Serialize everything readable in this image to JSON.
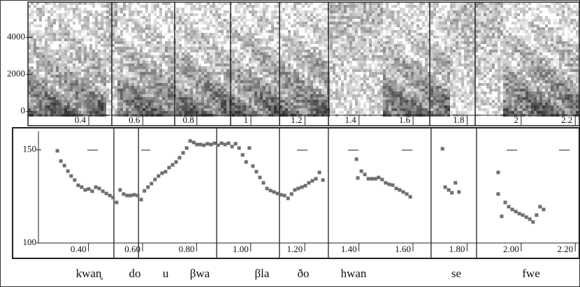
{
  "chart_data": [
    {
      "type": "spectrogram",
      "xlim": [
        0.175,
        2.215
      ],
      "ylim": [
        -200,
        5900
      ],
      "xticks": [
        0.4,
        0.6,
        0.8,
        1,
        1.2,
        1.4,
        1.6,
        1.8,
        2,
        2.2
      ],
      "yticks": [
        0,
        2000,
        4000
      ]
    },
    {
      "type": "scatter",
      "color": "#6e6e6e",
      "xlim": [
        0.215,
        2.215
      ],
      "ylim": [
        100,
        160
      ],
      "xticks": [
        {
          "value": 0.4,
          "label": "0.40"
        },
        {
          "value": 0.6,
          "label": "0.60"
        },
        {
          "value": 0.8,
          "label": "0.80"
        },
        {
          "value": 1.0,
          "label": "1.00"
        },
        {
          "value": 1.2,
          "label": "1.20"
        },
        {
          "value": 1.4,
          "label": "1.40"
        },
        {
          "value": 1.6,
          "label": "1.60"
        },
        {
          "value": 1.8,
          "label": "1.80"
        },
        {
          "value": 2.0,
          "label": "2.00"
        },
        {
          "value": 2.2,
          "label": "2.20"
        }
      ],
      "yticks": [
        100,
        150
      ],
      "boundaries": [
        0.494,
        0.585,
        0.874,
        1.106,
        1.287,
        1.667,
        1.835
      ],
      "x": [
        0.285,
        0.298,
        0.311,
        0.324,
        0.336,
        0.349,
        0.362,
        0.375,
        0.388,
        0.401,
        0.414,
        0.427,
        0.44,
        0.453,
        0.466,
        0.479,
        0.491,
        0.504,
        0.517,
        0.53,
        0.543,
        0.556,
        0.569,
        0.582,
        0.595,
        0.607,
        0.62,
        0.633,
        0.646,
        0.659,
        0.672,
        0.685,
        0.698,
        0.711,
        0.724,
        0.737,
        0.75,
        0.763,
        0.776,
        0.789,
        0.801,
        0.814,
        0.827,
        0.84,
        0.853,
        0.866,
        0.879,
        0.892,
        0.905,
        0.918,
        0.931,
        0.944,
        0.957,
        0.97,
        0.983,
        0.995,
        1.008,
        1.021,
        1.034,
        1.047,
        1.06,
        1.073,
        1.086,
        1.099,
        1.112,
        1.125,
        1.138,
        1.151,
        1.163,
        1.176,
        1.189,
        1.202,
        1.215,
        1.228,
        1.241,
        1.254,
        1.267,
        1.391,
        1.396,
        1.409,
        1.422,
        1.435,
        1.448,
        1.461,
        1.473,
        1.486,
        1.499,
        1.512,
        1.525,
        1.538,
        1.551,
        1.564,
        1.577,
        1.59,
        1.709,
        1.719,
        1.732,
        1.744,
        1.757,
        1.77,
        1.915,
        1.915,
        1.928,
        1.941,
        1.954,
        1.967,
        1.98,
        1.993,
        2.006,
        2.019,
        2.032,
        2.044,
        2.057,
        2.07,
        2.083
      ],
      "values": [
        149.5,
        144,
        141.6,
        138.6,
        136,
        133.8,
        131,
        130,
        128.5,
        129,
        127.8,
        130,
        129.3,
        127.8,
        126.6,
        125.5,
        124.4,
        121.8,
        128.5,
        126.3,
        125.5,
        125.5,
        125.9,
        125.5,
        123.3,
        128,
        130,
        131.9,
        134.1,
        136,
        137.5,
        138.3,
        140.5,
        142,
        143.5,
        145.8,
        148.4,
        151,
        154.8,
        154,
        152.9,
        152.9,
        152.5,
        153.3,
        152.9,
        153.6,
        152.5,
        153.6,
        152.9,
        153.6,
        151.8,
        153.3,
        151,
        147.3,
        143.5,
        151,
        141.3,
        138.3,
        135.2,
        132.3,
        129.3,
        128.2,
        127.4,
        126.6,
        125.9,
        125.5,
        124,
        126.3,
        128.5,
        129.3,
        130,
        130.8,
        132.3,
        133.4,
        134.5,
        137.9,
        133.8,
        145,
        134.9,
        138.6,
        136.8,
        134.5,
        134.5,
        134.5,
        135.2,
        134.1,
        132.3,
        131.5,
        131.1,
        129.3,
        128.5,
        127.4,
        126.3,
        124.8,
        150.6,
        130,
        128.5,
        127,
        132.3,
        127.4,
        137.9,
        126.3,
        114.3,
        121.8,
        119.5,
        118,
        116.9,
        115.8,
        115,
        113.9,
        112.8,
        111.3,
        115,
        119.5,
        118
      ]
    }
  ],
  "segments": [
    "kwan̥",
    "do",
    "u",
    "βwa",
    "βla",
    "ðo",
    "hwan",
    "se",
    "fwe"
  ]
}
